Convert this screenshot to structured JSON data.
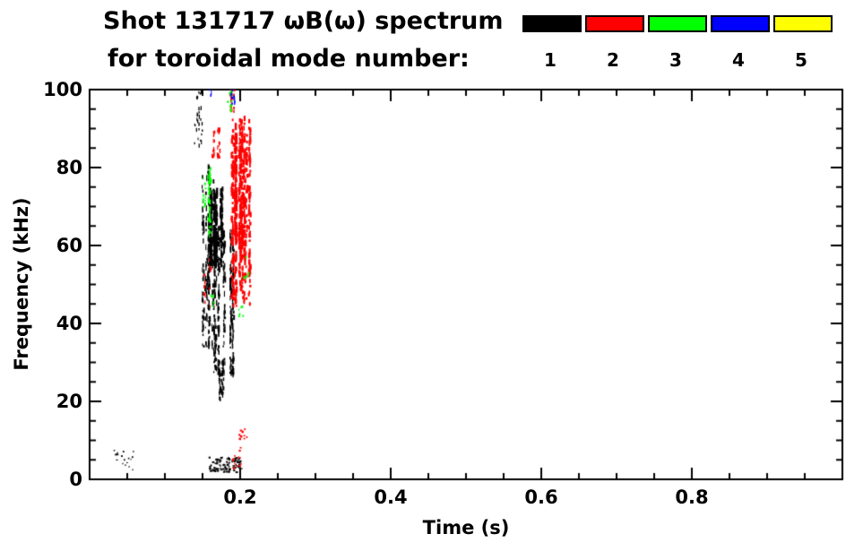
{
  "title": {
    "line1": "Shot 131717 ωB(ω) spectrum",
    "line2": "for toroidal mode number:"
  },
  "legend": {
    "entries": [
      {
        "label": "1",
        "color": "#000000"
      },
      {
        "label": "2",
        "color": "#ff0000"
      },
      {
        "label": "3",
        "color": "#00ff00"
      },
      {
        "label": "4",
        "color": "#0000ff"
      },
      {
        "label": "5",
        "color": "#ffff00"
      }
    ]
  },
  "chart_data": {
    "type": "scatter",
    "title": "Shot 131717 ωB(ω) spectrum for toroidal mode number: 1 2 3 4 5",
    "xlabel": "Time (s)",
    "ylabel": "Frequency (kHz)",
    "xlim": [
      0,
      1.0
    ],
    "ylim": [
      0,
      100
    ],
    "x_major_ticks": [
      0.2,
      0.4,
      0.6,
      0.8
    ],
    "x_minor_step": 0.05,
    "y_major_ticks": [
      0,
      20,
      40,
      60,
      80,
      100
    ],
    "y_minor_step": 5,
    "grid": false,
    "legend_position": "top-right",
    "series": [
      {
        "name": "toroidal mode n=1",
        "label": "1",
        "color": "#000000",
        "clusters": [
          {
            "t": [
              0.03,
              0.058
            ],
            "f": [
              2,
              8
            ],
            "n": 18,
            "w": [
              1,
              2
            ],
            "h": [
              1,
              2
            ]
          },
          {
            "t": [
              0.138,
              0.152
            ],
            "f": [
              84,
              99
            ],
            "n": 30,
            "w": [
              1,
              1.5
            ],
            "h": [
              2,
              5
            ],
            "cols": 5
          },
          {
            "t": [
              0.146,
              0.164
            ],
            "f": [
              33,
              80
            ],
            "n": 160,
            "w": [
              1,
              2
            ],
            "h": [
              2,
              7
            ],
            "cols": 7
          },
          {
            "t": [
              0.158,
              0.178
            ],
            "f": [
              54,
              74
            ],
            "n": 320,
            "w": [
              1.5,
              2.5
            ],
            "h": [
              2,
              6
            ],
            "cols": 10
          },
          {
            "t": [
              0.162,
              0.19
            ],
            "f": [
              26,
              64
            ],
            "n": 320,
            "w": [
              1,
              2
            ],
            "h": [
              2,
              7
            ],
            "cols": 11
          },
          {
            "t": [
              0.168,
              0.184
            ],
            "f": [
              20,
              30
            ],
            "n": 50,
            "w": [
              1,
              2
            ],
            "h": [
              2,
              5
            ],
            "cols": 6
          },
          {
            "t": [
              0.158,
              0.2
            ],
            "f": [
              1.5,
              5.5
            ],
            "n": 90,
            "w": [
              1.5,
              3
            ],
            "h": [
              1,
              2.5
            ]
          },
          {
            "t": [
              0.15,
              0.156
            ],
            "f": [
              40,
              52
            ],
            "n": 20,
            "w": [
              1,
              2
            ],
            "h": [
              2,
              5
            ],
            "cols": 3
          }
        ]
      },
      {
        "name": "toroidal mode n=2",
        "label": "2",
        "color": "#ff0000",
        "clusters": [
          {
            "t": [
              0.186,
              0.212
            ],
            "f": [
              44,
              92
            ],
            "n": 420,
            "w": [
              1.5,
              2.5
            ],
            "h": [
              2,
              7
            ],
            "cols": 12
          },
          {
            "t": [
              0.19,
              0.208
            ],
            "f": [
              60,
              88
            ],
            "n": 200,
            "w": [
              1.5,
              2.5
            ],
            "h": [
              2,
              6
            ],
            "cols": 9
          },
          {
            "t": [
              0.163,
              0.172
            ],
            "f": [
              82,
              90
            ],
            "n": 35,
            "w": [
              1,
              2
            ],
            "h": [
              2,
              5
            ],
            "cols": 4
          },
          {
            "t": [
              0.186,
              0.196
            ],
            "f": [
              94,
              100
            ],
            "n": 25,
            "w": [
              1,
              2
            ],
            "h": [
              2,
              4
            ],
            "cols": 4
          },
          {
            "t": [
              0.196,
              0.208
            ],
            "f": [
              7,
              13
            ],
            "n": 14,
            "w": [
              1.5,
              2.5
            ],
            "h": [
              1.5,
              3
            ]
          },
          {
            "t": [
              0.186,
              0.2
            ],
            "f": [
              2,
              6
            ],
            "n": 12,
            "w": [
              1.5,
              2.5
            ],
            "h": [
              1,
              2
            ]
          },
          {
            "t": [
              0.148,
              0.162
            ],
            "f": [
              44,
              58
            ],
            "n": 15,
            "w": [
              1,
              2
            ],
            "h": [
              2,
              4
            ],
            "cols": 4
          }
        ]
      },
      {
        "name": "toroidal mode n=3",
        "label": "3",
        "color": "#00ff00",
        "clusters": [
          {
            "t": [
              0.156,
              0.163
            ],
            "f": [
              62,
              80
            ],
            "n": 45,
            "w": [
              1,
              2
            ],
            "h": [
              2,
              6
            ],
            "cols": 3
          },
          {
            "t": [
              0.149,
              0.155
            ],
            "f": [
              69,
              78
            ],
            "n": 12,
            "w": [
              1,
              2
            ],
            "h": [
              2,
              4
            ],
            "cols": 2
          },
          {
            "t": [
              0.182,
              0.19
            ],
            "f": [
              94,
              100
            ],
            "n": 14,
            "w": [
              1,
              2
            ],
            "h": [
              2,
              4
            ],
            "cols": 3
          },
          {
            "t": [
              0.204,
              0.212
            ],
            "f": [
              51,
              57
            ],
            "n": 8,
            "w": [
              1,
              2
            ],
            "h": [
              2,
              3
            ]
          },
          {
            "t": [
              0.197,
              0.204
            ],
            "f": [
              39,
              44
            ],
            "n": 6,
            "w": [
              1,
              2
            ],
            "h": [
              2,
              3
            ]
          },
          {
            "t": [
              0.16,
              0.168
            ],
            "f": [
              44,
              48
            ],
            "n": 6,
            "w": [
              1,
              2
            ],
            "h": [
              2,
              3
            ]
          }
        ]
      },
      {
        "name": "toroidal mode n=4",
        "label": "4",
        "color": "#0000ff",
        "clusters": [
          {
            "t": [
              0.185,
              0.192
            ],
            "f": [
              95,
              100
            ],
            "n": 12,
            "w": [
              1,
              2
            ],
            "h": [
              2,
              4
            ],
            "cols": 3
          },
          {
            "t": [
              0.157,
              0.161
            ],
            "f": [
              97,
              100
            ],
            "n": 4,
            "w": [
              1,
              2
            ],
            "h": [
              2,
              3
            ]
          }
        ]
      },
      {
        "name": "toroidal mode n=5",
        "label": "5",
        "color": "#ffff00",
        "clusters": []
      }
    ]
  }
}
